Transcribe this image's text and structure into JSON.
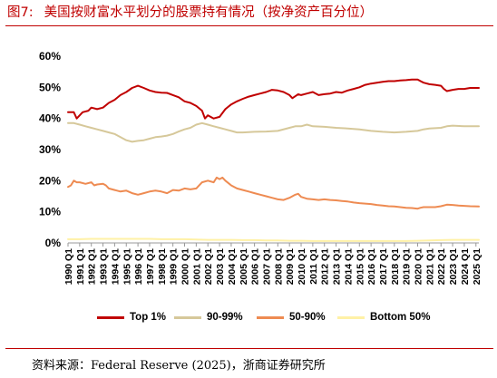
{
  "figure": {
    "number": "图7:",
    "title": "美国按财富水平划分的股票持有情况（按净资产百分位）",
    "source": "资料来源：Federal Reserve (2025)，浙商证券研究所"
  },
  "colors": {
    "title": "#c00000",
    "top1": "#c00000",
    "p90_99": "#d6c89a",
    "p50_90": "#ee8b52",
    "bottom50": "#fff1a6"
  },
  "chart_data": {
    "type": "line",
    "title": "",
    "xlabel": "",
    "ylabel": "",
    "ylim": [
      0,
      60
    ],
    "yticks": [
      "0%",
      "10%",
      "20%",
      "30%",
      "40%",
      "50%",
      "60%"
    ],
    "xticks": [
      "1990 Q1",
      "1991 Q1",
      "1992 Q1",
      "1993 Q1",
      "1994 Q1",
      "1995 Q1",
      "1996 Q1",
      "1997 Q1",
      "1998 Q1",
      "1999 Q1",
      "2000 Q1",
      "2001 Q1",
      "2002 Q1",
      "2003 Q1",
      "2004 Q1",
      "2005 Q1",
      "2006 Q1",
      "2007 Q1",
      "2008 Q1",
      "2009 Q1",
      "2010 Q1",
      "2011 Q1",
      "2012 Q1",
      "2013 Q1",
      "2014 Q1",
      "2015 Q1",
      "2016 Q1",
      "2017 Q1",
      "2018 Q1",
      "2019 Q1",
      "2020 Q1",
      "2021 Q1",
      "2022 Q1",
      "2023 Q1",
      "2024 Q1",
      "2025 Q1"
    ],
    "x_range": [
      1990.0,
      2025.25
    ],
    "grid": false,
    "legend_position": "bottom",
    "series": [
      {
        "name": "Top 1%",
        "color_key": "top1",
        "points": [
          [
            1990.0,
            42.0
          ],
          [
            1990.5,
            42.0
          ],
          [
            1990.75,
            40.0
          ],
          [
            1991.0,
            41.0
          ],
          [
            1991.25,
            42.0
          ],
          [
            1991.75,
            42.5
          ],
          [
            1992.0,
            43.5
          ],
          [
            1992.5,
            43.0
          ],
          [
            1993.0,
            43.5
          ],
          [
            1993.5,
            45.0
          ],
          [
            1994.0,
            46.0
          ],
          [
            1994.5,
            47.5
          ],
          [
            1995.0,
            48.5
          ],
          [
            1995.5,
            49.8
          ],
          [
            1996.0,
            50.5
          ],
          [
            1996.5,
            49.8
          ],
          [
            1997.0,
            49.0
          ],
          [
            1997.5,
            48.5
          ],
          [
            1998.0,
            48.3
          ],
          [
            1998.5,
            48.2
          ],
          [
            1999.0,
            47.5
          ],
          [
            1999.5,
            46.8
          ],
          [
            2000.0,
            45.5
          ],
          [
            2000.5,
            45.0
          ],
          [
            2001.0,
            44.0
          ],
          [
            2001.5,
            42.5
          ],
          [
            2001.75,
            40.0
          ],
          [
            2002.0,
            41.0
          ],
          [
            2002.5,
            40.0
          ],
          [
            2003.0,
            40.5
          ],
          [
            2003.5,
            43.0
          ],
          [
            2004.0,
            44.5
          ],
          [
            2004.5,
            45.5
          ],
          [
            2005.0,
            46.3
          ],
          [
            2005.5,
            47.0
          ],
          [
            2006.0,
            47.5
          ],
          [
            2006.5,
            48.0
          ],
          [
            2007.0,
            48.5
          ],
          [
            2007.5,
            49.2
          ],
          [
            2008.0,
            49.0
          ],
          [
            2008.5,
            48.5
          ],
          [
            2009.0,
            47.5
          ],
          [
            2009.25,
            46.5
          ],
          [
            2009.75,
            47.8
          ],
          [
            2010.0,
            47.5
          ],
          [
            2010.5,
            48.0
          ],
          [
            2011.0,
            48.5
          ],
          [
            2011.5,
            47.5
          ],
          [
            2012.0,
            47.8
          ],
          [
            2012.5,
            48.0
          ],
          [
            2013.0,
            48.5
          ],
          [
            2013.5,
            48.3
          ],
          [
            2014.0,
            49.0
          ],
          [
            2014.5,
            49.5
          ],
          [
            2015.0,
            50.0
          ],
          [
            2015.5,
            50.8
          ],
          [
            2016.0,
            51.2
          ],
          [
            2016.5,
            51.5
          ],
          [
            2017.0,
            51.8
          ],
          [
            2017.5,
            52.0
          ],
          [
            2018.0,
            52.0
          ],
          [
            2018.5,
            52.2
          ],
          [
            2019.0,
            52.3
          ],
          [
            2019.5,
            52.5
          ],
          [
            2020.0,
            52.5
          ],
          [
            2020.25,
            52.0
          ],
          [
            2020.5,
            51.5
          ],
          [
            2021.0,
            51.0
          ],
          [
            2021.5,
            50.8
          ],
          [
            2022.0,
            50.5
          ],
          [
            2022.25,
            49.5
          ],
          [
            2022.5,
            48.8
          ],
          [
            2023.0,
            49.2
          ],
          [
            2023.5,
            49.5
          ],
          [
            2024.0,
            49.5
          ],
          [
            2024.5,
            49.8
          ],
          [
            2025.25,
            49.8
          ]
        ]
      },
      {
        "name": "90-99%",
        "color_key": "p90_99",
        "points": [
          [
            1990.0,
            38.5
          ],
          [
            1990.5,
            38.5
          ],
          [
            1991.0,
            38.0
          ],
          [
            1991.5,
            37.5
          ],
          [
            1992.0,
            37.0
          ],
          [
            1992.5,
            36.5
          ],
          [
            1993.0,
            36.0
          ],
          [
            1993.5,
            35.5
          ],
          [
            1994.0,
            35.0
          ],
          [
            1994.5,
            34.0
          ],
          [
            1995.0,
            33.0
          ],
          [
            1995.5,
            32.5
          ],
          [
            1996.0,
            32.8
          ],
          [
            1996.5,
            33.0
          ],
          [
            1997.0,
            33.5
          ],
          [
            1997.5,
            34.0
          ],
          [
            1998.0,
            34.2
          ],
          [
            1998.5,
            34.5
          ],
          [
            1999.0,
            35.0
          ],
          [
            1999.5,
            35.8
          ],
          [
            2000.0,
            36.5
          ],
          [
            2000.5,
            37.0
          ],
          [
            2001.0,
            38.0
          ],
          [
            2001.5,
            38.5
          ],
          [
            2002.0,
            38.0
          ],
          [
            2002.5,
            37.5
          ],
          [
            2003.0,
            37.0
          ],
          [
            2003.5,
            36.5
          ],
          [
            2004.0,
            36.0
          ],
          [
            2004.5,
            35.5
          ],
          [
            2005.0,
            35.5
          ],
          [
            2006.0,
            35.7
          ],
          [
            2007.0,
            35.8
          ],
          [
            2008.0,
            36.0
          ],
          [
            2009.0,
            37.0
          ],
          [
            2009.5,
            37.5
          ],
          [
            2010.0,
            37.5
          ],
          [
            2010.5,
            38.0
          ],
          [
            2011.0,
            37.5
          ],
          [
            2012.0,
            37.3
          ],
          [
            2013.0,
            37.0
          ],
          [
            2014.0,
            36.8
          ],
          [
            2015.0,
            36.5
          ],
          [
            2016.0,
            36.0
          ],
          [
            2017.0,
            35.7
          ],
          [
            2018.0,
            35.5
          ],
          [
            2019.0,
            35.7
          ],
          [
            2020.0,
            36.0
          ],
          [
            2020.5,
            36.5
          ],
          [
            2021.0,
            36.8
          ],
          [
            2022.0,
            37.0
          ],
          [
            2022.5,
            37.5
          ],
          [
            2023.0,
            37.7
          ],
          [
            2024.0,
            37.5
          ],
          [
            2025.25,
            37.5
          ]
        ]
      },
      {
        "name": "50-90%",
        "color_key": "p50_90",
        "points": [
          [
            1990.0,
            18.0
          ],
          [
            1990.25,
            18.5
          ],
          [
            1990.5,
            20.0
          ],
          [
            1990.75,
            19.5
          ],
          [
            1991.0,
            19.5
          ],
          [
            1991.5,
            19.0
          ],
          [
            1992.0,
            19.5
          ],
          [
            1992.25,
            18.5
          ],
          [
            1992.5,
            18.8
          ],
          [
            1993.0,
            19.0
          ],
          [
            1993.25,
            18.5
          ],
          [
            1993.5,
            17.5
          ],
          [
            1994.0,
            17.0
          ],
          [
            1994.5,
            16.5
          ],
          [
            1995.0,
            16.8
          ],
          [
            1995.5,
            16.0
          ],
          [
            1996.0,
            15.5
          ],
          [
            1996.5,
            16.0
          ],
          [
            1997.0,
            16.5
          ],
          [
            1997.5,
            16.8
          ],
          [
            1998.0,
            16.5
          ],
          [
            1998.5,
            16.0
          ],
          [
            1999.0,
            17.0
          ],
          [
            1999.5,
            16.8
          ],
          [
            2000.0,
            17.5
          ],
          [
            2000.5,
            17.2
          ],
          [
            2001.0,
            17.5
          ],
          [
            2001.5,
            19.5
          ],
          [
            2002.0,
            20.0
          ],
          [
            2002.5,
            19.5
          ],
          [
            2002.75,
            21.0
          ],
          [
            2003.0,
            20.5
          ],
          [
            2003.25,
            21.0
          ],
          [
            2003.5,
            20.0
          ],
          [
            2004.0,
            18.5
          ],
          [
            2004.5,
            17.5
          ],
          [
            2005.0,
            17.0
          ],
          [
            2005.5,
            16.5
          ],
          [
            2006.0,
            16.0
          ],
          [
            2006.5,
            15.5
          ],
          [
            2007.0,
            15.0
          ],
          [
            2007.5,
            14.5
          ],
          [
            2008.0,
            14.0
          ],
          [
            2008.5,
            13.8
          ],
          [
            2009.0,
            14.5
          ],
          [
            2009.5,
            15.5
          ],
          [
            2009.75,
            15.8
          ],
          [
            2010.0,
            14.8
          ],
          [
            2010.5,
            14.2
          ],
          [
            2011.0,
            14.0
          ],
          [
            2011.5,
            13.8
          ],
          [
            2012.0,
            14.0
          ],
          [
            2012.5,
            13.8
          ],
          [
            2013.0,
            13.7
          ],
          [
            2013.5,
            13.5
          ],
          [
            2014.0,
            13.3
          ],
          [
            2014.5,
            13.0
          ],
          [
            2015.0,
            12.8
          ],
          [
            2016.0,
            12.5
          ],
          [
            2016.5,
            12.2
          ],
          [
            2017.0,
            12.0
          ],
          [
            2017.5,
            11.8
          ],
          [
            2018.0,
            11.7
          ],
          [
            2018.5,
            11.5
          ],
          [
            2019.0,
            11.3
          ],
          [
            2019.5,
            11.2
          ],
          [
            2020.0,
            11.0
          ],
          [
            2020.25,
            11.3
          ],
          [
            2020.5,
            11.5
          ],
          [
            2021.0,
            11.5
          ],
          [
            2021.5,
            11.5
          ],
          [
            2022.0,
            11.8
          ],
          [
            2022.5,
            12.3
          ],
          [
            2023.0,
            12.2
          ],
          [
            2023.5,
            12.0
          ],
          [
            2024.0,
            11.9
          ],
          [
            2024.5,
            11.8
          ],
          [
            2025.25,
            11.7
          ]
        ]
      },
      {
        "name": "Bottom 50%",
        "color_key": "bottom50",
        "points": [
          [
            1990.0,
            1.2
          ],
          [
            1991.0,
            1.2
          ],
          [
            1992.0,
            1.3
          ],
          [
            1993.0,
            1.3
          ],
          [
            1994.0,
            1.3
          ],
          [
            1995.0,
            1.3
          ],
          [
            1996.0,
            1.3
          ],
          [
            1997.0,
            1.3
          ],
          [
            1998.0,
            1.2
          ],
          [
            1999.0,
            1.2
          ],
          [
            2000.0,
            1.2
          ],
          [
            2001.0,
            1.1
          ],
          [
            2002.0,
            1.0
          ],
          [
            2003.0,
            1.0
          ],
          [
            2004.0,
            1.0
          ],
          [
            2005.0,
            0.9
          ],
          [
            2006.0,
            0.9
          ],
          [
            2007.0,
            0.8
          ],
          [
            2008.0,
            0.8
          ],
          [
            2009.0,
            0.7
          ],
          [
            2010.0,
            0.7
          ],
          [
            2011.0,
            0.6
          ],
          [
            2012.0,
            0.6
          ],
          [
            2013.0,
            0.6
          ],
          [
            2014.0,
            0.6
          ],
          [
            2015.0,
            0.6
          ],
          [
            2016.0,
            0.6
          ],
          [
            2017.0,
            0.6
          ],
          [
            2018.0,
            0.6
          ],
          [
            2019.0,
            0.6
          ],
          [
            2020.0,
            0.7
          ],
          [
            2021.0,
            0.8
          ],
          [
            2022.0,
            0.9
          ],
          [
            2023.0,
            1.0
          ],
          [
            2024.0,
            1.0
          ],
          [
            2025.25,
            1.0
          ]
        ]
      }
    ]
  }
}
